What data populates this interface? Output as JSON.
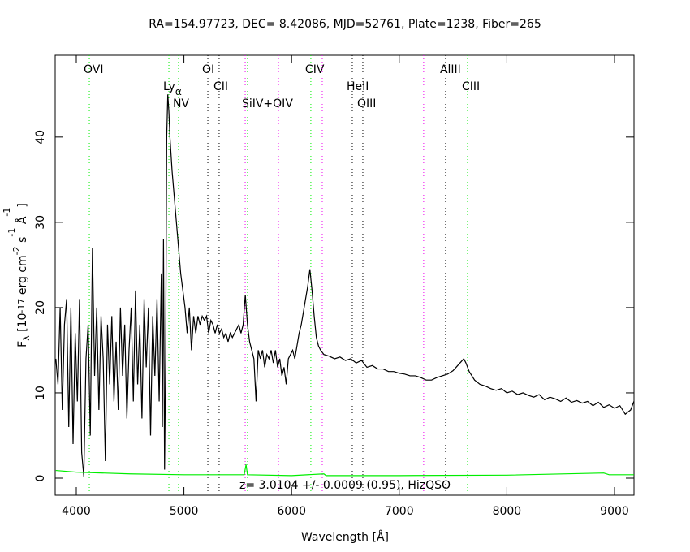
{
  "chart_data": {
    "type": "line",
    "title": "RA=154.97723, DEC= 8.42086, MJD=52761, Plate=1238, Fiber=265",
    "x_label": "Wavelength [Å]",
    "y_label": [
      {
        "text": "F"
      },
      {
        "text": "λ",
        "shift": "sub"
      },
      {
        "text": " [10"
      },
      {
        "text": "-17",
        "shift": "sup"
      },
      {
        "text": " erg cm"
      },
      {
        "text": "-2",
        "shift": "sup"
      },
      {
        "text": " s"
      },
      {
        "text": "-1",
        "shift": "sup"
      },
      {
        "text": " Å"
      },
      {
        "text": "-1",
        "shift": "sup"
      },
      {
        "text": "]"
      }
    ],
    "annotation": "z= 3.0104 +/- 0.0009 (0.95), HizQSO",
    "xlim": [
      3804,
      9181
    ],
    "xticks": [
      4000,
      5000,
      6000,
      7000,
      8000,
      9000
    ],
    "ylim": [
      -2,
      49.6
    ],
    "yticks": [
      0,
      10,
      20,
      30,
      40
    ],
    "series": [
      {
        "color": "#000000",
        "x": [
          3810,
          3830,
          3850,
          3870,
          3890,
          3910,
          3930,
          3950,
          3970,
          3990,
          4010,
          4030,
          4050,
          4070,
          4090,
          4110,
          4130,
          4150,
          4170,
          4190,
          4210,
          4230,
          4250,
          4270,
          4290,
          4310,
          4330,
          4350,
          4370,
          4390,
          4410,
          4430,
          4450,
          4470,
          4490,
          4510,
          4530,
          4550,
          4570,
          4590,
          4610,
          4630,
          4650,
          4670,
          4690,
          4710,
          4730,
          4750,
          4770,
          4790,
          4800,
          4810,
          4820,
          4830,
          4840,
          4850,
          4860,
          4870,
          4890,
          4910,
          4930,
          4950,
          4970,
          4990,
          5010,
          5030,
          5050,
          5070,
          5090,
          5110,
          5130,
          5150,
          5170,
          5190,
          5210,
          5230,
          5250,
          5270,
          5290,
          5310,
          5330,
          5350,
          5370,
          5390,
          5410,
          5430,
          5450,
          5470,
          5490,
          5510,
          5530,
          5550,
          5570,
          5590,
          5610,
          5630,
          5650,
          5670,
          5690,
          5710,
          5730,
          5750,
          5770,
          5790,
          5810,
          5830,
          5850,
          5870,
          5890,
          5910,
          5930,
          5950,
          5970,
          5990,
          6010,
          6030,
          6050,
          6070,
          6090,
          6110,
          6130,
          6150,
          6170,
          6190,
          6210,
          6230,
          6250,
          6270,
          6300,
          6350,
          6400,
          6450,
          6500,
          6550,
          6600,
          6650,
          6700,
          6750,
          6800,
          6850,
          6900,
          6950,
          7000,
          7050,
          7100,
          7150,
          7200,
          7250,
          7300,
          7350,
          7400,
          7450,
          7500,
          7550,
          7600,
          7620,
          7650,
          7700,
          7750,
          7800,
          7850,
          7900,
          7950,
          8000,
          8050,
          8100,
          8150,
          8200,
          8250,
          8300,
          8350,
          8400,
          8450,
          8500,
          8550,
          8600,
          8650,
          8700,
          8750,
          8800,
          8850,
          8900,
          8950,
          9000,
          9050,
          9100,
          9150,
          9180
        ],
        "values": [
          14,
          11,
          20,
          8,
          18,
          21,
          6,
          20,
          4,
          17,
          9,
          21,
          3,
          0.2,
          14,
          18,
          5,
          27,
          12,
          20,
          8,
          19,
          14,
          2,
          18,
          11,
          19,
          9,
          16,
          8,
          20,
          12,
          18,
          7,
          15,
          20,
          9,
          22,
          11,
          18,
          7,
          21,
          13,
          20,
          5,
          19,
          12,
          21,
          9,
          24,
          6,
          28,
          1,
          14,
          40,
          45,
          43,
          40,
          36,
          33,
          30,
          27,
          24,
          22,
          20,
          17,
          20,
          15,
          19,
          17,
          19,
          18,
          19,
          18.5,
          19,
          17,
          18.5,
          18,
          17,
          18,
          17,
          17.5,
          16.5,
          17,
          16,
          17,
          16.5,
          17,
          17.5,
          18,
          17,
          18,
          21.5,
          18,
          16,
          15,
          14,
          9,
          15,
          14,
          15,
          13,
          14.5,
          14,
          15,
          13.5,
          15,
          13,
          14,
          12,
          13,
          11,
          14,
          14.5,
          15,
          14,
          15.5,
          17,
          18,
          19.5,
          21,
          22.5,
          24.5,
          22,
          19,
          16.5,
          15.5,
          15,
          14.5,
          14.3,
          14,
          14.2,
          13.8,
          14,
          13.5,
          13.8,
          13,
          13.2,
          12.8,
          12.8,
          12.5,
          12.5,
          12.3,
          12.2,
          12,
          12,
          11.8,
          11.5,
          11.5,
          11.8,
          12,
          12.2,
          12.6,
          13.3,
          14,
          13.5,
          12.5,
          11.5,
          11,
          10.8,
          10.5,
          10.3,
          10.5,
          10,
          10.2,
          9.8,
          10,
          9.7,
          9.5,
          9.8,
          9.2,
          9.5,
          9.3,
          9,
          9.4,
          8.9,
          9.1,
          8.8,
          9,
          8.5,
          8.9,
          8.3,
          8.6,
          8.2,
          8.5,
          7.5,
          8,
          9
        ]
      },
      {
        "color": "#00ee00",
        "x": [
          3810,
          4000,
          4500,
          5000,
          5560,
          5577,
          5590,
          6000,
          6300,
          6320,
          7000,
          8000,
          8900,
          8950,
          9180
        ],
        "values": [
          0.9,
          0.7,
          0.5,
          0.4,
          0.4,
          1.6,
          0.4,
          0.3,
          0.5,
          0.3,
          0.3,
          0.35,
          0.6,
          0.4,
          0.4
        ]
      }
    ],
    "lines": [
      {
        "label": "OVI",
        "x": 4121,
        "color": "#00ee00"
      },
      {
        "label": "Ly",
        "sub": "α",
        "x": 4860,
        "color": "#00ee00"
      },
      {
        "label": "NV",
        "x": 4950,
        "color": "#00ee00"
      },
      {
        "label": "OI",
        "x": 5222,
        "color": "#000000"
      },
      {
        "label": "CII",
        "x": 5327,
        "color": "#000000"
      },
      {
        "x": 5569,
        "color": "#ee00ee"
      },
      {
        "label": "SiIV+OIV",
        "x": 5591,
        "color": "#00ee00"
      },
      {
        "x": 5878,
        "color": "#ee00ee"
      },
      {
        "label": "CIV",
        "x": 6179,
        "color": "#00ee00"
      },
      {
        "x": 6285,
        "color": "#ee00ee"
      },
      {
        "label": "HeII",
        "x": 6564,
        "color": "#000000"
      },
      {
        "label": "OIII",
        "x": 6662,
        "color": "#000000"
      },
      {
        "x": 7227,
        "color": "#ee00ee"
      },
      {
        "label": "AlIII",
        "x": 7431,
        "color": "#000000"
      },
      {
        "label": "CIII",
        "x": 7635,
        "color": "#00ee00"
      }
    ]
  }
}
